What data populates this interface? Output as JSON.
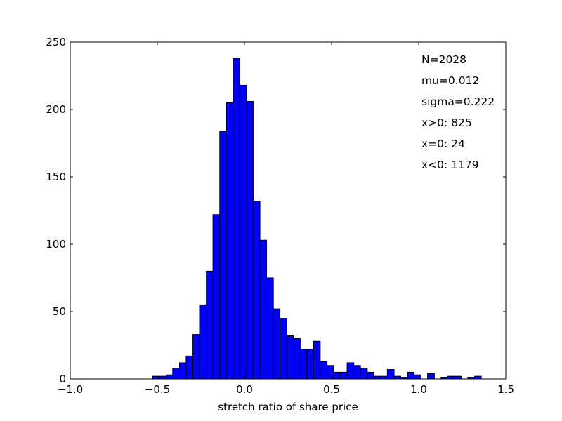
{
  "chart_data": {
    "type": "bar",
    "title": "",
    "xlabel": "stretch ratio of share price",
    "ylabel": "",
    "xlim": [
      -1.0,
      1.5
    ],
    "ylim": [
      0,
      250
    ],
    "xticks": [
      "−1.0",
      "−0.5",
      "0.0",
      "0.5",
      "1.0",
      "1.5"
    ],
    "xtick_values": [
      -1.0,
      -0.5,
      0.0,
      0.5,
      1.0,
      1.5
    ],
    "yticks": [
      "0",
      "50",
      "100",
      "150",
      "200",
      "250"
    ],
    "ytick_values": [
      0,
      50,
      100,
      150,
      200,
      250
    ],
    "grid": false,
    "bar_color": "#0000ff",
    "edge_color": "#000000",
    "bins": [
      {
        "x0": -0.527,
        "x1": -0.489,
        "count": 2
      },
      {
        "x0": -0.489,
        "x1": -0.45,
        "count": 2
      },
      {
        "x0": -0.45,
        "x1": -0.412,
        "count": 3
      },
      {
        "x0": -0.412,
        "x1": -0.373,
        "count": 8
      },
      {
        "x0": -0.373,
        "x1": -0.335,
        "count": 12
      },
      {
        "x0": -0.335,
        "x1": -0.296,
        "count": 17
      },
      {
        "x0": -0.296,
        "x1": -0.258,
        "count": 33
      },
      {
        "x0": -0.258,
        "x1": -0.219,
        "count": 55
      },
      {
        "x0": -0.219,
        "x1": -0.181,
        "count": 80
      },
      {
        "x0": -0.181,
        "x1": -0.142,
        "count": 122
      },
      {
        "x0": -0.142,
        "x1": -0.104,
        "count": 184
      },
      {
        "x0": -0.104,
        "x1": -0.065,
        "count": 205
      },
      {
        "x0": -0.065,
        "x1": -0.027,
        "count": 238
      },
      {
        "x0": -0.027,
        "x1": 0.012,
        "count": 218
      },
      {
        "x0": 0.012,
        "x1": 0.05,
        "count": 206
      },
      {
        "x0": 0.05,
        "x1": 0.089,
        "count": 132
      },
      {
        "x0": 0.089,
        "x1": 0.127,
        "count": 103
      },
      {
        "x0": 0.127,
        "x1": 0.166,
        "count": 75
      },
      {
        "x0": 0.166,
        "x1": 0.204,
        "count": 52
      },
      {
        "x0": 0.204,
        "x1": 0.243,
        "count": 45
      },
      {
        "x0": 0.243,
        "x1": 0.281,
        "count": 32
      },
      {
        "x0": 0.281,
        "x1": 0.32,
        "count": 30
      },
      {
        "x0": 0.32,
        "x1": 0.358,
        "count": 22
      },
      {
        "x0": 0.358,
        "x1": 0.397,
        "count": 22
      },
      {
        "x0": 0.397,
        "x1": 0.435,
        "count": 28
      },
      {
        "x0": 0.435,
        "x1": 0.474,
        "count": 13
      },
      {
        "x0": 0.474,
        "x1": 0.512,
        "count": 10
      },
      {
        "x0": 0.512,
        "x1": 0.551,
        "count": 5
      },
      {
        "x0": 0.551,
        "x1": 0.589,
        "count": 5
      },
      {
        "x0": 0.589,
        "x1": 0.628,
        "count": 12
      },
      {
        "x0": 0.628,
        "x1": 0.666,
        "count": 10
      },
      {
        "x0": 0.666,
        "x1": 0.705,
        "count": 8
      },
      {
        "x0": 0.705,
        "x1": 0.743,
        "count": 5
      },
      {
        "x0": 0.743,
        "x1": 0.782,
        "count": 2
      },
      {
        "x0": 0.782,
        "x1": 0.82,
        "count": 2
      },
      {
        "x0": 0.82,
        "x1": 0.859,
        "count": 7
      },
      {
        "x0": 0.859,
        "x1": 0.897,
        "count": 2
      },
      {
        "x0": 0.897,
        "x1": 0.936,
        "count": 1
      },
      {
        "x0": 0.936,
        "x1": 0.974,
        "count": 5
      },
      {
        "x0": 0.974,
        "x1": 1.013,
        "count": 3
      },
      {
        "x0": 1.013,
        "x1": 1.051,
        "count": 0
      },
      {
        "x0": 1.051,
        "x1": 1.09,
        "count": 4
      },
      {
        "x0": 1.09,
        "x1": 1.128,
        "count": 0
      },
      {
        "x0": 1.128,
        "x1": 1.167,
        "count": 1
      },
      {
        "x0": 1.167,
        "x1": 1.205,
        "count": 2
      },
      {
        "x0": 1.205,
        "x1": 1.244,
        "count": 2
      },
      {
        "x0": 1.244,
        "x1": 1.282,
        "count": 0
      },
      {
        "x0": 1.282,
        "x1": 1.321,
        "count": 1
      },
      {
        "x0": 1.321,
        "x1": 1.359,
        "count": 2
      }
    ],
    "annotations": [
      "N=2028",
      "mu=0.012",
      "sigma=0.222",
      "x>0: 825",
      "x=0: 24",
      "x<0: 1179"
    ]
  }
}
